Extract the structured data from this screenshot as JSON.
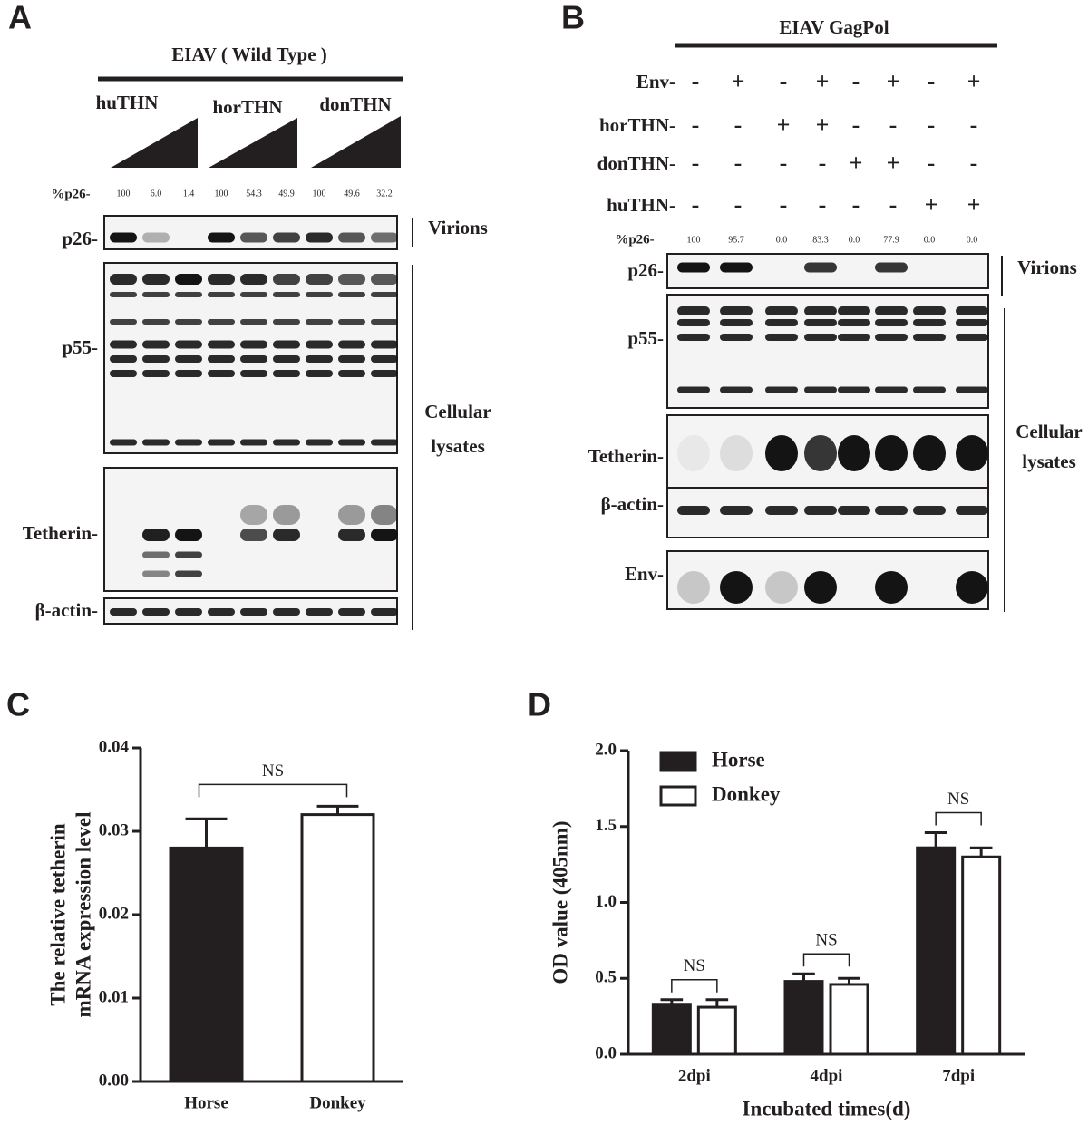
{
  "panel_a": {
    "letter": "A",
    "header": "EIAV ( Wild Type )",
    "groups": [
      "huTHN",
      "horTHN",
      "donTHN"
    ],
    "pct_label": "%p26-",
    "pct_values": [
      "100",
      "6.0",
      "1.4",
      "100",
      "54.3",
      "49.9",
      "100",
      "49.6",
      "32.2"
    ],
    "blots": [
      "p26-",
      "p55-",
      "Tetherin-",
      "β-actin-"
    ],
    "side_labels": {
      "virions": "Virions",
      "lysates": [
        "Cellular",
        "lysates"
      ]
    }
  },
  "panel_b": {
    "letter": "B",
    "header": "EIAV GagPol",
    "treatments": [
      {
        "label": "Env-",
        "signs": [
          "-",
          "+",
          "-",
          "+",
          "-",
          "+",
          "-",
          "+"
        ]
      },
      {
        "label": "horTHN-",
        "signs": [
          "-",
          "-",
          "+",
          "+",
          "-",
          "-",
          "-",
          "-"
        ]
      },
      {
        "label": "donTHN-",
        "signs": [
          "-",
          "-",
          "-",
          "-",
          "+",
          "+",
          "-",
          "-"
        ]
      },
      {
        "label": "huTHN-",
        "signs": [
          "-",
          "-",
          "-",
          "-",
          "-",
          "-",
          "+",
          "+"
        ]
      }
    ],
    "pct_label": "%p26-",
    "pct_values": [
      "100",
      "95.7",
      "0.0",
      "83.3",
      "0.0",
      "77.9",
      "0.0",
      "0.0"
    ],
    "blots": [
      "p26-",
      "p55-",
      "Tetherin-",
      "β-actin-",
      "Env-"
    ],
    "side_labels": {
      "virions": "Virions",
      "lysates": [
        "Cellular",
        "lysates"
      ]
    }
  },
  "chart_data": [
    {
      "type": "bar",
      "panel": "C",
      "ylabel": [
        "The relative tetherin",
        "mRNA expression level"
      ],
      "categories": [
        "Horse",
        "Donkey"
      ],
      "values": [
        0.028,
        0.032
      ],
      "errors": [
        0.0035,
        0.001
      ],
      "colors": [
        "#231f20",
        "#ffffff"
      ],
      "annotation": "NS",
      "ylim": [
        0,
        0.04
      ],
      "yticks": [
        {
          "value": 0,
          "label": "0.00"
        },
        0.01,
        0.02,
        0.03,
        0.04
      ]
    },
    {
      "type": "bar",
      "panel": "D",
      "ylabel": "OD value (405nm)",
      "xlabel": "Incubated times(d)",
      "categories": [
        "2dpi",
        "4dpi",
        "7dpi"
      ],
      "series": [
        {
          "name": "Horse",
          "color": "#231f20",
          "values": [
            0.33,
            0.48,
            1.36
          ],
          "errors": [
            0.03,
            0.05,
            0.1
          ]
        },
        {
          "name": "Donkey",
          "color": "#ffffff",
          "values": [
            0.31,
            0.46,
            1.3
          ],
          "errors": [
            0.05,
            0.04,
            0.06
          ]
        }
      ],
      "annotations": [
        "NS",
        "NS",
        "NS"
      ],
      "legend": "upper left",
      "ylim": [
        0,
        2
      ],
      "yticks": [
        {
          "value": 0,
          "label": "0.0"
        },
        0.5,
        {
          "value": 1,
          "label": "1.0"
        },
        1.5,
        {
          "value": 2,
          "label": "2.0"
        }
      ]
    }
  ]
}
